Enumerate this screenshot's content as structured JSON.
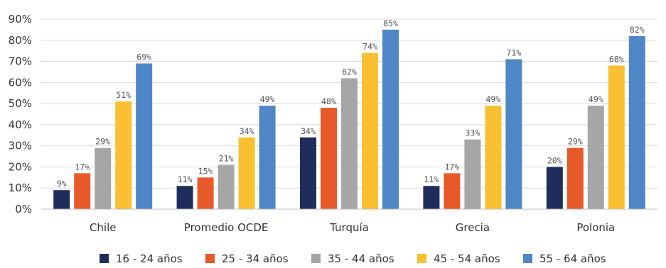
{
  "chart_data": {
    "type": "bar",
    "categories": [
      "Chile",
      "Promedio OCDE",
      "Turquía",
      "Grecia",
      "Polonia"
    ],
    "series": [
      {
        "name": "16 - 24 años",
        "color": "#1f2d5c",
        "values": [
          9,
          11,
          34,
          11,
          20
        ]
      },
      {
        "name": "25 - 34 años",
        "color": "#e8592a",
        "values": [
          17,
          15,
          48,
          17,
          29
        ]
      },
      {
        "name": "35 - 44 años",
        "color": "#a6a6a6",
        "values": [
          29,
          21,
          62,
          33,
          49
        ]
      },
      {
        "name": "45 - 54 años",
        "color": "#fbc032",
        "values": [
          51,
          34,
          74,
          49,
          68
        ]
      },
      {
        "name": "55 - 64 años",
        "color": "#4f86c6",
        "values": [
          69,
          49,
          85,
          71,
          82
        ]
      }
    ],
    "yticks": [
      "0%",
      "10%",
      "20%",
      "30%",
      "40%",
      "50%",
      "60%",
      "70%",
      "80%",
      "90%"
    ],
    "ylim": [
      0,
      90
    ],
    "value_suffix": "%",
    "gridlines": true,
    "legend_position": "bottom"
  }
}
